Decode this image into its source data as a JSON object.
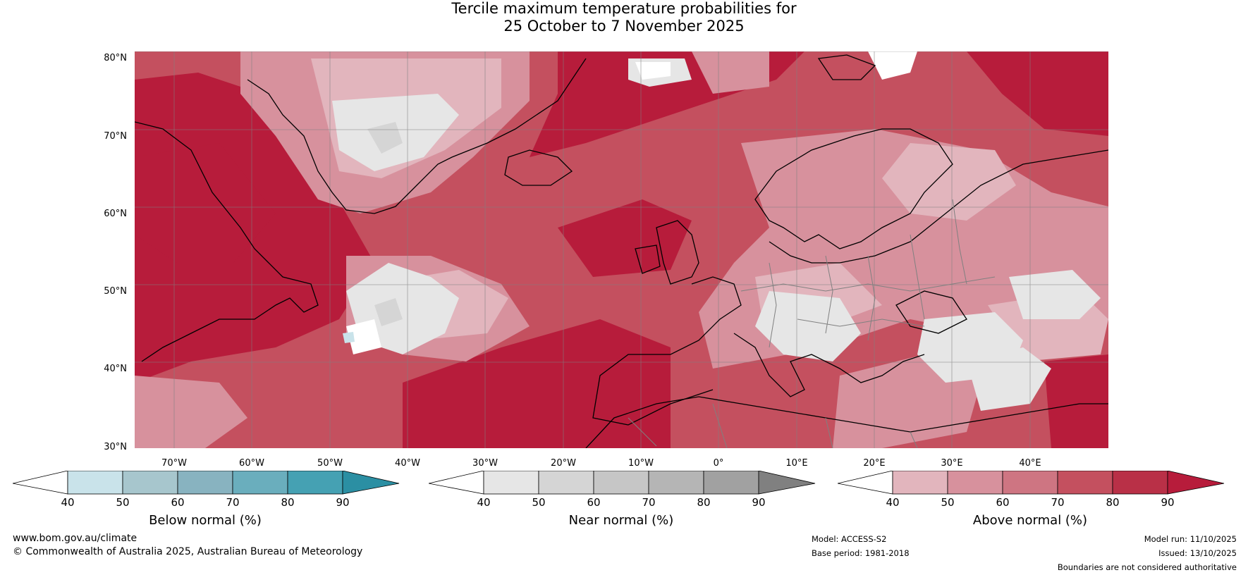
{
  "title": {
    "line1": "Tercile maximum temperature probabilities for",
    "line2": "25 October to 7 November 2025"
  },
  "lat_labels": [
    "80°N",
    "70°N",
    "60°N",
    "50°N",
    "40°N",
    "30°N"
  ],
  "lon_labels": [
    "70°W",
    "60°W",
    "50°W",
    "40°W",
    "30°W",
    "20°W",
    "10°W",
    "0°",
    "10°E",
    "20°E",
    "30°E",
    "40°E"
  ],
  "colorbars": [
    {
      "label": "Below normal (%)",
      "ticks": [
        "40",
        "50",
        "60",
        "70",
        "80",
        "90"
      ],
      "colors": [
        "#ffffff",
        "#c9e3ea",
        "#a7c6cd",
        "#88b3c0",
        "#6aaebd",
        "#45a1b3",
        "#2b8fa3"
      ]
    },
    {
      "label": "Near normal (%)",
      "ticks": [
        "40",
        "50",
        "60",
        "70",
        "80",
        "90"
      ],
      "colors": [
        "#ffffff",
        "#e6e6e6",
        "#d5d5d5",
        "#c6c6c6",
        "#b5b5b5",
        "#a1a1a1",
        "#808080"
      ]
    },
    {
      "label": "Above normal (%)",
      "ticks": [
        "40",
        "50",
        "60",
        "70",
        "80",
        "90"
      ],
      "colors": [
        "#ffffff",
        "#e2b5bd",
        "#d7919d",
        "#ce7582",
        "#c4505f",
        "#b93047",
        "#b71c3b"
      ]
    }
  ],
  "footer": {
    "website": "www.bom.gov.au/climate",
    "copyright": "© Commonwealth of Australia 2025, Australian Bureau of Meteorology",
    "model": "Model: ACCESS-S2",
    "base_period": "Base period: 1981-2018",
    "model_run": "Model run: 11/10/2025",
    "issued": "Issued: 13/10/2025",
    "disclaimer": "Boundaries are not considered authoritative"
  }
}
